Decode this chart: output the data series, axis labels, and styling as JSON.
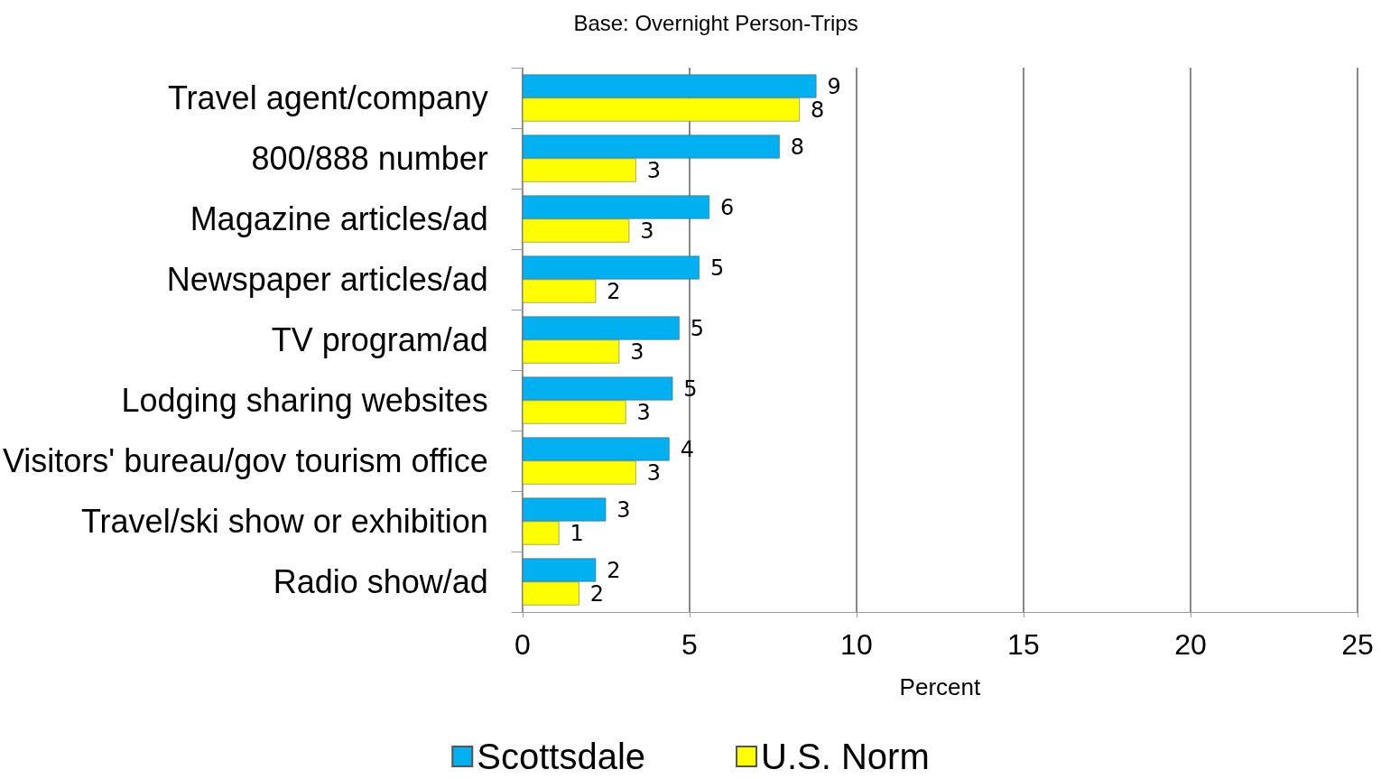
{
  "chart_data": {
    "type": "bar",
    "orientation": "horizontal",
    "title": "Base: Overnight Person-Trips",
    "xlabel": "Percent",
    "categories": [
      "Travel agent/company",
      "800/888 number",
      "Magazine articles/ad",
      "Newspaper articles/ad",
      "TV program/ad",
      "Lodging sharing websites",
      "Visitors' bureau/gov tourism office",
      "Travel/ski show or exhibition",
      "Radio show/ad"
    ],
    "series": [
      {
        "name": "Scottsdale",
        "color": "#00b0f0",
        "values": [
          8.8,
          7.7,
          5.6,
          5.3,
          4.7,
          4.5,
          4.4,
          2.5,
          2.2
        ],
        "value_labels": [
          "9",
          "8",
          "6",
          "5",
          "5",
          "5",
          "4",
          "3",
          "2"
        ]
      },
      {
        "name": "U.S. Norm",
        "color": "#ffff00",
        "values": [
          8.3,
          3.4,
          3.2,
          2.2,
          2.9,
          3.1,
          3.4,
          1.1,
          1.7
        ],
        "value_labels": [
          "8",
          "3",
          "3",
          "2",
          "3",
          "3",
          "3",
          "1",
          "2"
        ]
      }
    ],
    "xlim": [
      0,
      25
    ],
    "xticks": [
      0,
      5,
      10,
      15,
      20,
      25
    ],
    "grid": "x",
    "legend": "bottom"
  }
}
